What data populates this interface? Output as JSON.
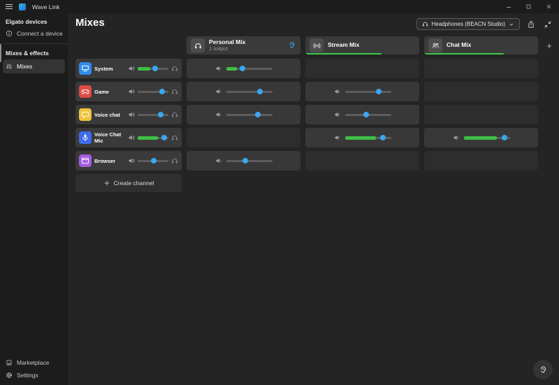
{
  "colors": {
    "accent_green": "#3ec94a",
    "meter_green": "#3fbf46",
    "accent_blue": "#3aa7f0"
  },
  "titlebar": {
    "app_name": "Wave Link",
    "icons": [
      "menu-icon",
      "minimize-icon",
      "maximize-icon",
      "close-icon"
    ]
  },
  "sidebar": {
    "sections": [
      {
        "label": "Elgato devices",
        "items": [
          {
            "label": "Connect a device",
            "icon": "info-icon"
          }
        ]
      },
      {
        "label": "Mixes & effects",
        "items": [
          {
            "label": "Mixes",
            "icon": "faders-icon",
            "selected": true
          }
        ]
      }
    ],
    "footer_items": [
      {
        "label": "Marketplace",
        "icon": "storefront-icon"
      },
      {
        "label": "Settings",
        "icon": "gear-icon"
      }
    ]
  },
  "header": {
    "title": "Mixes",
    "output_device": "Headphones (BEACN Studio)"
  },
  "mix_columns": [
    {
      "title": "Personal Mix",
      "subtitle": "1 output",
      "icon": "headphones-icon",
      "level": null
    },
    {
      "title": "Stream Mix",
      "subtitle": "",
      "icon": "broadcast-icon",
      "level": 67
    },
    {
      "title": "Chat Mix",
      "subtitle": "",
      "icon": "people-icon",
      "level": 70
    }
  ],
  "channels": [
    {
      "name": "System",
      "icon": "display-icon",
      "color": "#2e8ceb",
      "strip": {
        "volume": 57,
        "meter": 42
      },
      "mixes": {
        "personal": {
          "volume": 36,
          "meter": 23
        },
        "stream": null,
        "chat": null
      }
    },
    {
      "name": "Game",
      "icon": "gamepad-icon",
      "color": "#e04a45",
      "strip": {
        "volume": 80
      },
      "mixes": {
        "personal": {
          "volume": 73
        },
        "stream": {
          "volume": 74
        },
        "chat": null
      }
    },
    {
      "name": "Voice chat",
      "icon": "chat-bubble-icon",
      "color": "#eec43b",
      "strip": {
        "volume": 76
      },
      "mixes": {
        "personal": {
          "volume": 69
        },
        "stream": {
          "volume": 46
        },
        "chat": null
      }
    },
    {
      "name": "Voice Chat Mic (BEAC...",
      "icon": "microphone-icon",
      "color": "#3e6cec",
      "strip": {
        "volume": 86,
        "meter": 66
      },
      "mixes": {
        "personal": null,
        "stream": {
          "volume": 82,
          "meter": 68
        },
        "chat": {
          "volume": 88,
          "meter": 72
        }
      }
    },
    {
      "name": "Browser",
      "icon": "browser-icon",
      "color": "#a55be4",
      "strip": {
        "volume": 52
      },
      "mixes": {
        "personal": {
          "volume": 42
        },
        "stream": null,
        "chat": null
      }
    }
  ],
  "actions": {
    "create_channel": "Create channel",
    "add_mix": "+"
  }
}
